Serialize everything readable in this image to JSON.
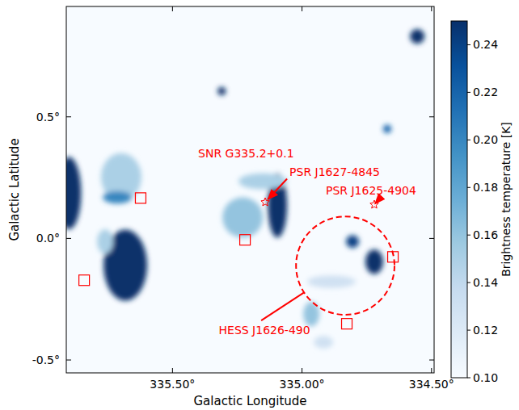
{
  "chart_data": {
    "type": "image",
    "x_label": "Galactic Longitude",
    "y_label": "Galactic Latitude",
    "xlim": [
      335.91,
      334.49
    ],
    "ylim": [
      -0.553,
      0.954
    ],
    "xticks": [
      {
        "value": 335.5,
        "label": "335.50°"
      },
      {
        "value": 335.0,
        "label": "335.00°"
      },
      {
        "value": 334.5,
        "label": "334.50°"
      }
    ],
    "yticks": [
      {
        "value": 0.5,
        "label": "0.5°"
      },
      {
        "value": 0.0,
        "label": "0.0°"
      },
      {
        "value": -0.5,
        "label": "-0.5°"
      }
    ],
    "colorbar": {
      "label": "Brightness temperature [K]",
      "range": [
        0.1,
        0.25
      ],
      "ticks": [
        {
          "value": 0.1,
          "label": "0.10"
        },
        0.12,
        0.14,
        0.16,
        0.18,
        {
          "value": 0.2,
          "label": "0.20"
        },
        0.22,
        0.24
      ]
    },
    "sources": [
      {
        "l": 335.682,
        "b": -0.11,
        "rl": 0.084,
        "rb": 0.146,
        "t": 0.26
      },
      {
        "l": 335.9,
        "b": 0.186,
        "rl": 0.047,
        "rb": 0.149,
        "t": 0.25
      },
      {
        "l": 335.698,
        "b": 0.252,
        "rl": 0.078,
        "rb": 0.099,
        "t": 0.15
      },
      {
        "l": 335.713,
        "b": 0.169,
        "rl": 0.056,
        "rb": 0.026,
        "t": 0.2
      },
      {
        "l": 335.76,
        "b": -0.013,
        "rl": 0.031,
        "rb": 0.05,
        "t": 0.15
      },
      {
        "l": 335.095,
        "b": 0.136,
        "rl": 0.037,
        "rb": 0.132,
        "t": 0.25
      },
      {
        "l": 335.229,
        "b": 0.086,
        "rl": 0.078,
        "rb": 0.083,
        "t": 0.16
      },
      {
        "l": 335.151,
        "b": 0.235,
        "rl": 0.094,
        "rb": 0.033,
        "t": 0.15
      },
      {
        "l": 335.31,
        "b": 0.606,
        "rl": 0.016,
        "rb": 0.017,
        "t": 0.25
      },
      {
        "l": 334.671,
        "b": 0.451,
        "rl": 0.016,
        "rb": 0.017,
        "t": 0.22
      },
      {
        "l": 334.555,
        "b": 0.831,
        "rl": 0.028,
        "rb": 0.03,
        "t": 0.25
      },
      {
        "l": 334.805,
        "b": -0.013,
        "rl": 0.025,
        "rb": 0.026,
        "t": 0.24
      },
      {
        "l": 334.721,
        "b": -0.096,
        "rl": 0.034,
        "rb": 0.05,
        "t": 0.25
      },
      {
        "l": 334.964,
        "b": -0.311,
        "rl": 0.031,
        "rb": 0.05,
        "t": 0.16
      },
      {
        "l": 334.917,
        "b": -0.427,
        "rl": 0.037,
        "rb": 0.026,
        "t": 0.13
      },
      {
        "l": 334.886,
        "b": -0.178,
        "rl": 0.094,
        "rb": 0.026,
        "t": 0.13
      }
    ],
    "snr_label": "SNR G335.2+0.1",
    "pulsars": [
      {
        "name": "PSR J1627-4845",
        "l": 335.142,
        "b": 0.149
      },
      {
        "name": "PSR J1625-4904",
        "l": 334.721,
        "b": 0.139
      }
    ],
    "region": {
      "name": "HESS J1626-490",
      "l": 334.833,
      "b": -0.112,
      "radius": 0.19
    },
    "squares": [
      {
        "l": 335.623,
        "b": 0.166
      },
      {
        "l": 335.22,
        "b": -0.006
      },
      {
        "l": 334.649,
        "b": -0.076
      },
      {
        "l": 334.827,
        "b": -0.351
      },
      {
        "l": 335.841,
        "b": -0.172
      }
    ],
    "color": "red"
  }
}
